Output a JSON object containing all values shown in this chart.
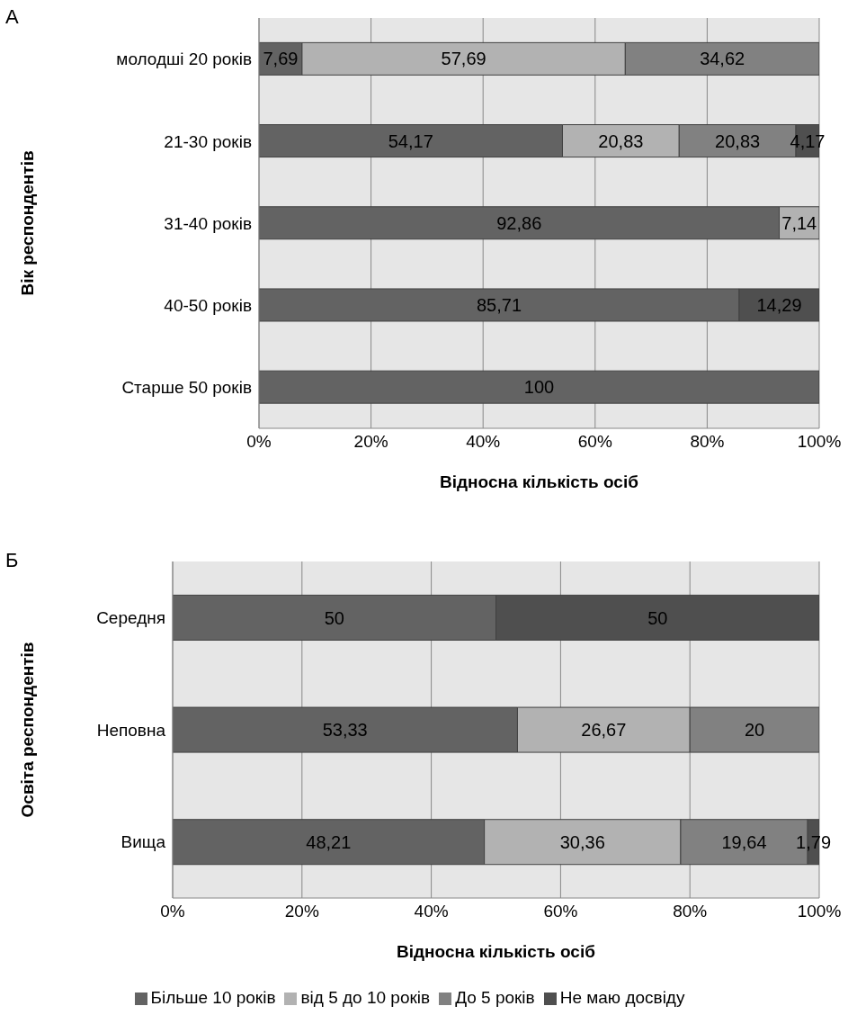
{
  "chart_data": [
    {
      "type": "bar",
      "orientation": "horizontal",
      "stacked": true,
      "title": "А",
      "ylabel": "Вік респондентів",
      "xlabel": "Відносна кількість осіб",
      "categories": [
        "молодші 20 років",
        "21-30 років",
        "31-40 років",
        "40-50 років",
        "Старше 50 років"
      ],
      "xlim": [
        0,
        100
      ],
      "xticks": [
        {
          "value": 0,
          "label": "0%"
        },
        {
          "value": 20,
          "label": "20%"
        },
        {
          "value": 40,
          "label": "40%"
        },
        {
          "value": 60,
          "label": "60%"
        },
        {
          "value": 80,
          "label": "80%"
        },
        {
          "value": 100,
          "label": "100%"
        }
      ],
      "grid": "x",
      "legend": false,
      "series": [
        {
          "color": "#636363",
          "values": [
            7.69,
            54.17,
            92.86,
            85.71,
            100
          ],
          "value_labels": [
            "7,69",
            "54,17",
            "92,86",
            "85,71",
            "100"
          ]
        },
        {
          "color": "#b2b2b2",
          "values": [
            57.69,
            20.83,
            7.14,
            null,
            null
          ],
          "value_labels": [
            "57,69",
            "20,83",
            "7,14",
            null,
            null
          ]
        },
        {
          "color": "#818181",
          "values": [
            34.62,
            20.83,
            null,
            null,
            null
          ],
          "value_labels": [
            "34,62",
            "20,83",
            null,
            null,
            null
          ]
        },
        {
          "color": "#4f4f4f",
          "values": [
            null,
            4.17,
            null,
            14.29,
            null
          ],
          "value_labels": [
            null,
            "4,17",
            null,
            "14,29",
            null
          ]
        }
      ]
    },
    {
      "type": "bar",
      "orientation": "horizontal",
      "stacked": true,
      "title": "Б",
      "ylabel": "Освіта респондентів",
      "xlabel": "Відносна кількість осіб",
      "categories": [
        "Середня",
        "Неповна",
        "Вища"
      ],
      "xlim": [
        0,
        100
      ],
      "xticks": [
        {
          "value": 0,
          "label": "0%"
        },
        {
          "value": 20,
          "label": "20%"
        },
        {
          "value": 40,
          "label": "40%"
        },
        {
          "value": 60,
          "label": "60%"
        },
        {
          "value": 80,
          "label": "80%"
        },
        {
          "value": 100,
          "label": "100%"
        }
      ],
      "grid": "x",
      "legend": "bottom",
      "series": [
        {
          "name": "Більше 10 років",
          "color": "#636363",
          "values": [
            50,
            53.33,
            48.21
          ],
          "value_labels": [
            "50",
            "53,33",
            "48,21"
          ]
        },
        {
          "name": "від 5 до 10 років",
          "color": "#b2b2b2",
          "values": [
            null,
            26.67,
            30.36
          ],
          "value_labels": [
            null,
            "26,67",
            "30,36"
          ]
        },
        {
          "name": "До 5 років",
          "color": "#818181",
          "values": [
            null,
            20,
            19.64
          ],
          "value_labels": [
            null,
            "20",
            "19,64"
          ]
        },
        {
          "name": "Не маю досвіду",
          "color": "#4f4f4f",
          "values": [
            50,
            null,
            1.79
          ],
          "value_labels": [
            "50",
            null,
            "1,79"
          ]
        }
      ]
    }
  ]
}
